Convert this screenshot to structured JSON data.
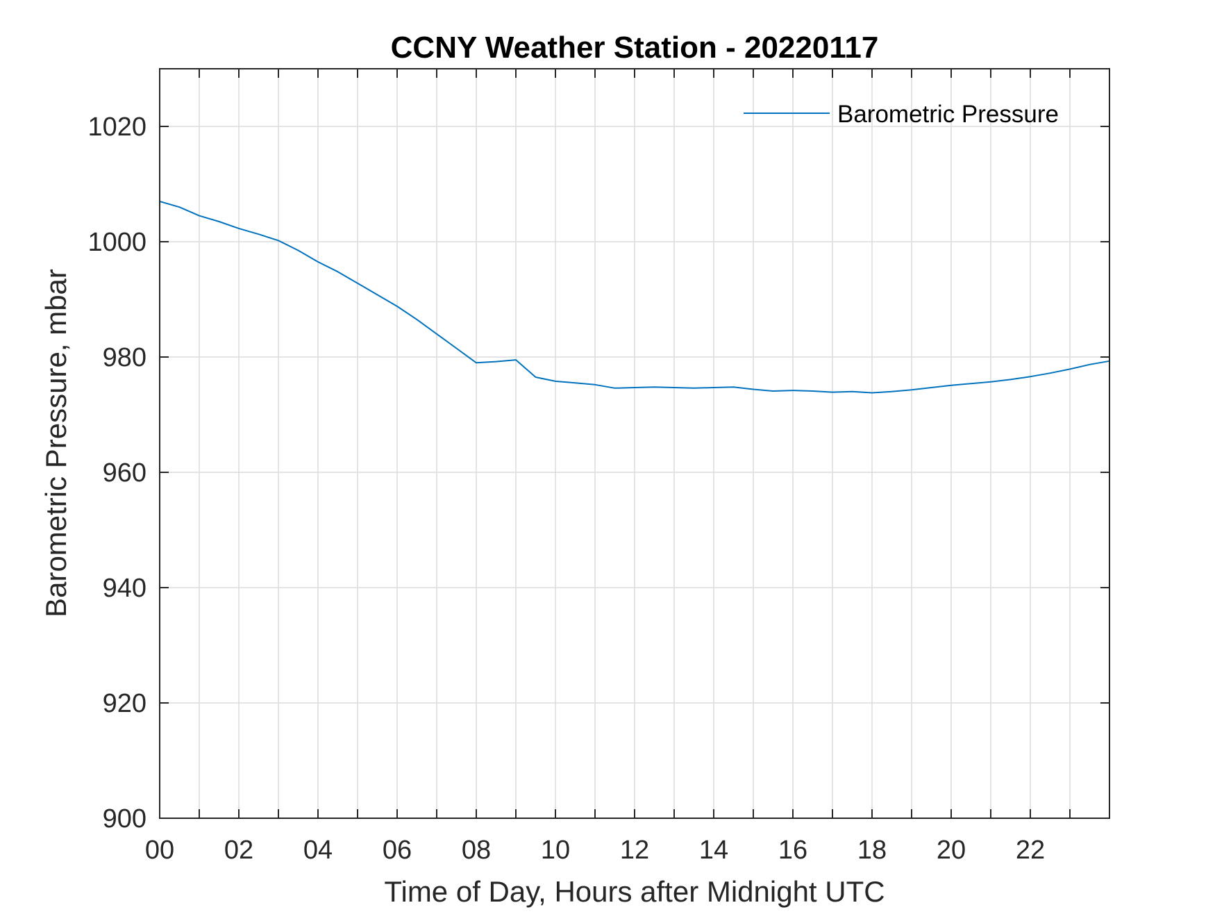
{
  "chart_data": {
    "type": "line",
    "title": "CCNY Weather Station - 20220117",
    "xlabel": "Time of Day, Hours after Midnight UTC",
    "ylabel": "Barometric Pressure, mbar",
    "xlim": [
      0,
      24
    ],
    "ylim": [
      900,
      1030
    ],
    "x_ticks": [
      0,
      2,
      4,
      6,
      8,
      10,
      12,
      14,
      16,
      18,
      20,
      22
    ],
    "x_tick_labels": [
      "00",
      "02",
      "04",
      "06",
      "08",
      "10",
      "12",
      "14",
      "16",
      "18",
      "20",
      "22"
    ],
    "x_grid": [
      0,
      1,
      2,
      3,
      4,
      5,
      6,
      7,
      8,
      9,
      10,
      11,
      12,
      13,
      14,
      15,
      16,
      17,
      18,
      19,
      20,
      21,
      22,
      23,
      24
    ],
    "y_ticks": [
      900,
      920,
      940,
      960,
      980,
      1000,
      1020
    ],
    "y_tick_labels": [
      "900",
      "920",
      "940",
      "960",
      "980",
      "1000",
      "1020"
    ],
    "grid": true,
    "legend_position": "top-right",
    "series": [
      {
        "name": "Barometric Pressure",
        "color": "#0072BD",
        "x": [
          0,
          0.5,
          1,
          1.5,
          2,
          2.5,
          3,
          3.5,
          4,
          4.5,
          5,
          5.5,
          6,
          6.5,
          7,
          7.5,
          8,
          8.5,
          9,
          9.5,
          10,
          10.5,
          11,
          11.5,
          12,
          12.5,
          13,
          13.5,
          14,
          14.5,
          15,
          15.5,
          16,
          16.5,
          17,
          17.5,
          18,
          18.5,
          19,
          19.5,
          20,
          20.5,
          21,
          21.5,
          22,
          22.5,
          23,
          23.5,
          24
        ],
        "values": [
          1007,
          1006,
          1004.5,
          1003.5,
          1002.3,
          1001.3,
          1000.2,
          998.5,
          996.5,
          994.8,
          992.8,
          990.8,
          988.8,
          986.5,
          984,
          981.5,
          979,
          979.2,
          979.5,
          976.5,
          975.8,
          975.5,
          975.2,
          974.6,
          974.7,
          974.8,
          974.7,
          974.6,
          974.7,
          974.8,
          974.4,
          974.1,
          974.2,
          974.1,
          973.9,
          974,
          973.8,
          974,
          974.3,
          974.7,
          975.1,
          975.4,
          975.7,
          976.1,
          976.6,
          977.2,
          977.9,
          978.7,
          979.3
        ]
      }
    ]
  }
}
